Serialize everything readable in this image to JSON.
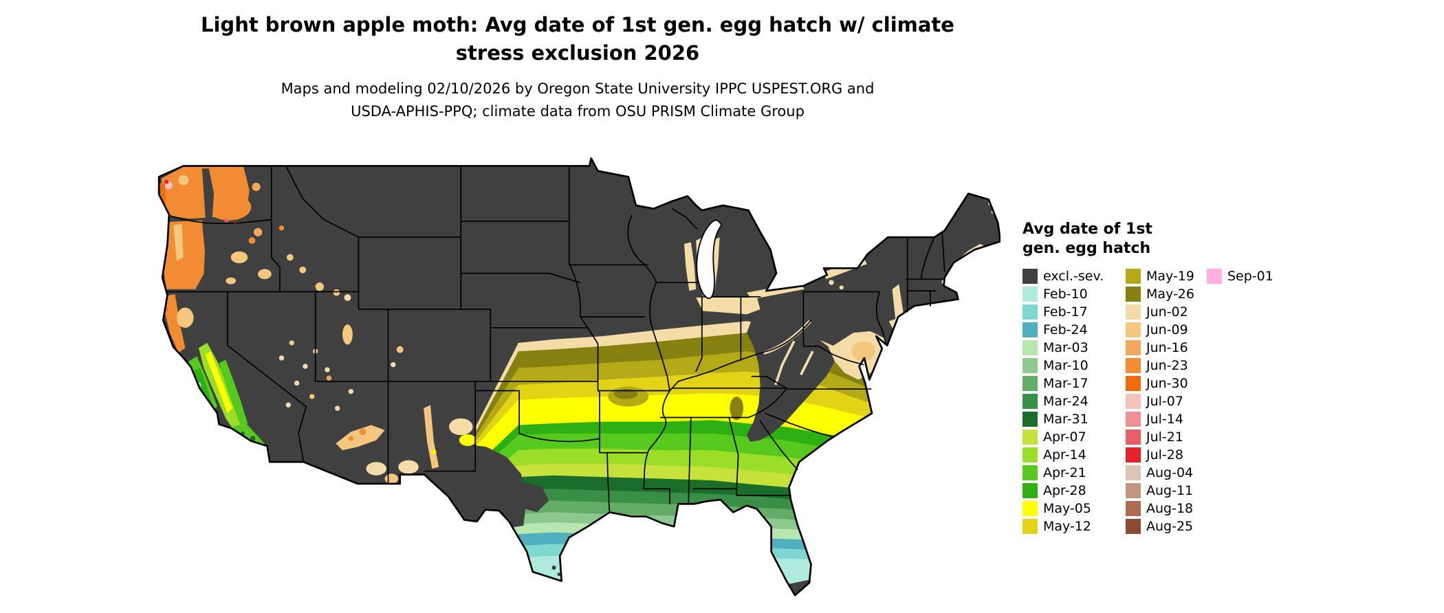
{
  "header": {
    "title_line1": "Light brown apple moth: Avg date of 1st gen. egg hatch w/ climate",
    "title_line2": "stress exclusion 2026",
    "subtitle_line1": "Maps and modeling 02/10/2026 by Oregon State University IPPC USPEST.ORG and",
    "subtitle_line2": "USDA-APHIS-PPQ; climate data from OSU PRISM Climate Group"
  },
  "legend": {
    "title_line1": "Avg date of 1st",
    "title_line2": "gen. egg hatch",
    "columns": [
      {
        "entries": [
          {
            "label": "excl.-sev.",
            "color": "#404040"
          },
          {
            "label": "Feb-10",
            "color": "#aeeade"
          },
          {
            "label": "Feb-17",
            "color": "#7fd8d0"
          },
          {
            "label": "Feb-24",
            "color": "#4fb0c0"
          },
          {
            "label": "Mar-03",
            "color": "#b7e6b0"
          },
          {
            "label": "Mar-10",
            "color": "#8cc98e"
          },
          {
            "label": "Mar-17",
            "color": "#63ad68"
          },
          {
            "label": "Mar-24",
            "color": "#398f45"
          },
          {
            "label": "Mar-31",
            "color": "#1a6e2a"
          },
          {
            "label": "Apr-07",
            "color": "#c8e23c"
          },
          {
            "label": "Apr-14",
            "color": "#9ade28"
          },
          {
            "label": "Apr-21",
            "color": "#56c81e"
          },
          {
            "label": "Apr-28",
            "color": "#2db012"
          },
          {
            "label": "May-05",
            "color": "#ffff00"
          },
          {
            "label": "May-12",
            "color": "#e3d317"
          }
        ]
      },
      {
        "entries": [
          {
            "label": "May-19",
            "color": "#b4aa18"
          },
          {
            "label": "May-26",
            "color": "#868010"
          },
          {
            "label": "Jun-02",
            "color": "#f3dca6"
          },
          {
            "label": "Jun-09",
            "color": "#f3c77e"
          },
          {
            "label": "Jun-16",
            "color": "#f3a75a"
          },
          {
            "label": "Jun-23",
            "color": "#f28c33"
          },
          {
            "label": "Jun-30",
            "color": "#ef6c0d"
          },
          {
            "label": "Jul-07",
            "color": "#f4c3bd"
          },
          {
            "label": "Jul-14",
            "color": "#ef9092"
          },
          {
            "label": "Jul-21",
            "color": "#ea5d64"
          },
          {
            "label": "Jul-28",
            "color": "#e8202c"
          },
          {
            "label": "Aug-04",
            "color": "#dcc3b6"
          },
          {
            "label": "Aug-11",
            "color": "#c29480"
          },
          {
            "label": "Aug-18",
            "color": "#a96c50"
          },
          {
            "label": "Aug-25",
            "color": "#8c4a32"
          }
        ]
      },
      {
        "entries": [
          {
            "label": "Sep-01",
            "color": "#ffb0dc"
          }
        ]
      }
    ]
  }
}
